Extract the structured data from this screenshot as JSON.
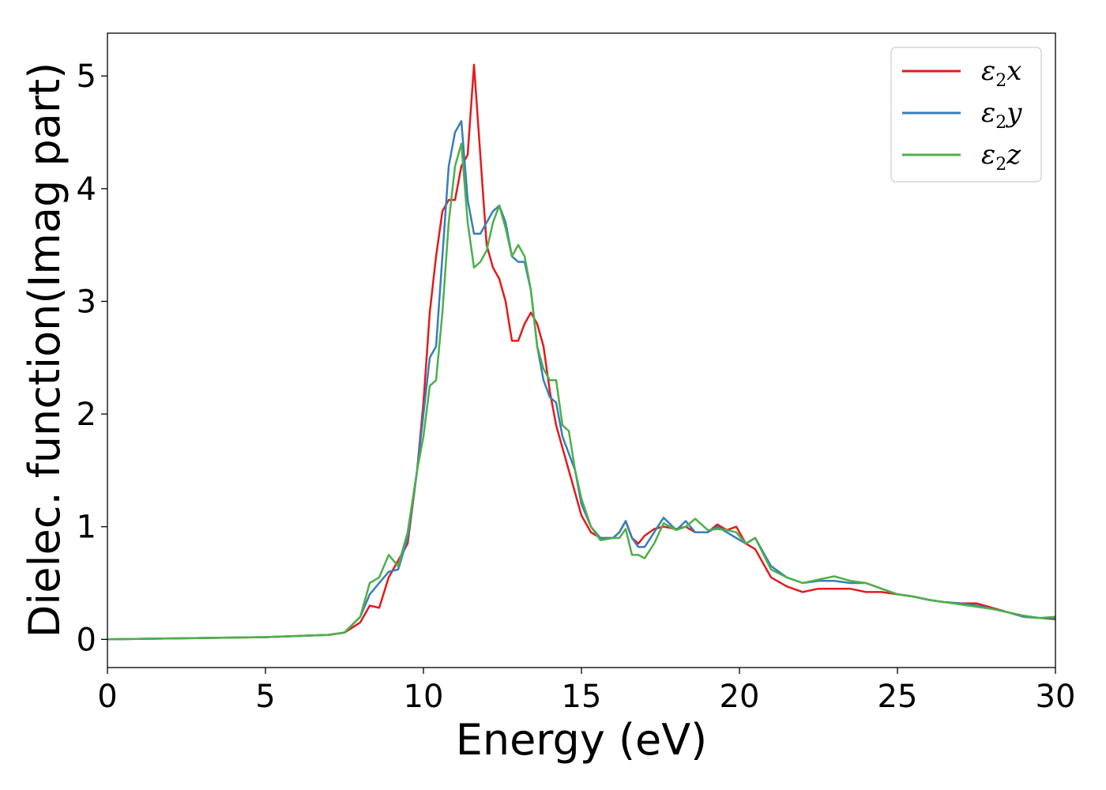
{
  "chart_data": {
    "type": "line",
    "title": "",
    "xlabel": "Energy (eV)",
    "ylabel": "Dielec. function(Imag part)",
    "xlim": [
      0,
      30
    ],
    "ylim": [
      -0.25,
      5.38
    ],
    "xticks": [
      0,
      5,
      10,
      15,
      20,
      25,
      30
    ],
    "yticks": [
      0,
      1,
      2,
      3,
      4,
      5
    ],
    "grid": false,
    "legend_position": "top-right",
    "series": [
      {
        "name": "ε₂x",
        "legend": {
          "base": "ε",
          "sub": "2",
          "suffix": "x"
        },
        "color": "#e41a1c",
        "x": [
          0,
          5,
          7,
          7.5,
          8,
          8.3,
          8.6,
          8.9,
          9.2,
          9.5,
          9.8,
          10.0,
          10.2,
          10.4,
          10.6,
          10.8,
          11.0,
          11.2,
          11.4,
          11.6,
          11.8,
          12.0,
          12.2,
          12.4,
          12.6,
          12.8,
          13.0,
          13.2,
          13.4,
          13.6,
          13.8,
          14.0,
          14.2,
          14.4,
          14.6,
          14.8,
          15.0,
          15.3,
          15.6,
          16.0,
          16.2,
          16.4,
          16.6,
          16.8,
          17.0,
          17.3,
          17.6,
          18.0,
          18.3,
          18.6,
          19.0,
          19.3,
          19.6,
          19.9,
          20.2,
          20.5,
          21.0,
          21.5,
          22.0,
          22.5,
          23.0,
          23.5,
          24.0,
          24.5,
          25.0,
          25.5,
          26.0,
          26.5,
          27.0,
          27.5,
          28.0,
          28.5,
          29.0,
          29.5,
          30.0
        ],
        "y": [
          0,
          0.02,
          0.04,
          0.06,
          0.15,
          0.3,
          0.28,
          0.55,
          0.7,
          0.85,
          1.5,
          2.1,
          2.9,
          3.4,
          3.8,
          3.9,
          3.9,
          4.2,
          4.3,
          5.1,
          4.3,
          3.5,
          3.3,
          3.2,
          3.0,
          2.65,
          2.65,
          2.8,
          2.9,
          2.8,
          2.6,
          2.2,
          1.9,
          1.7,
          1.5,
          1.3,
          1.1,
          0.95,
          0.9,
          0.9,
          0.95,
          1.05,
          0.9,
          0.85,
          0.92,
          0.98,
          1.0,
          0.98,
          1.0,
          0.95,
          0.95,
          1.02,
          0.97,
          1.0,
          0.85,
          0.8,
          0.55,
          0.47,
          0.42,
          0.45,
          0.45,
          0.45,
          0.42,
          0.42,
          0.4,
          0.38,
          0.35,
          0.33,
          0.32,
          0.32,
          0.28,
          0.24,
          0.2,
          0.19,
          0.18
        ]
      },
      {
        "name": "ε₂y",
        "legend": {
          "base": "ε",
          "sub": "2",
          "suffix": "y"
        },
        "color": "#377eb8",
        "x": [
          0,
          5,
          7,
          7.5,
          8,
          8.3,
          8.6,
          8.9,
          9.2,
          9.5,
          9.8,
          10.0,
          10.2,
          10.4,
          10.6,
          10.8,
          11.0,
          11.2,
          11.4,
          11.6,
          11.8,
          12.0,
          12.2,
          12.4,
          12.6,
          12.8,
          13.0,
          13.2,
          13.4,
          13.6,
          13.8,
          14.0,
          14.2,
          14.4,
          14.6,
          14.8,
          15.0,
          15.3,
          15.6,
          16.0,
          16.2,
          16.4,
          16.6,
          16.8,
          17.0,
          17.3,
          17.6,
          18.0,
          18.3,
          18.6,
          19.0,
          19.3,
          19.6,
          19.9,
          20.2,
          20.5,
          21.0,
          21.5,
          22.0,
          22.5,
          23.0,
          23.5,
          24.0,
          24.5,
          25.0,
          25.5,
          26.0,
          26.5,
          27.0,
          27.5,
          28.0,
          28.5,
          29.0,
          29.5,
          30.0
        ],
        "y": [
          0,
          0.02,
          0.04,
          0.06,
          0.2,
          0.4,
          0.5,
          0.6,
          0.62,
          0.9,
          1.5,
          2.0,
          2.5,
          2.6,
          3.4,
          4.2,
          4.5,
          4.6,
          3.9,
          3.6,
          3.6,
          3.7,
          3.8,
          3.85,
          3.7,
          3.4,
          3.35,
          3.35,
          3.1,
          2.6,
          2.3,
          2.15,
          2.1,
          1.8,
          1.65,
          1.5,
          1.2,
          1.0,
          0.9,
          0.9,
          0.95,
          1.05,
          0.9,
          0.82,
          0.82,
          0.95,
          1.08,
          0.97,
          1.05,
          0.95,
          0.95,
          1.0,
          0.95,
          0.9,
          0.85,
          0.9,
          0.65,
          0.55,
          0.5,
          0.52,
          0.52,
          0.5,
          0.5,
          0.45,
          0.4,
          0.38,
          0.35,
          0.33,
          0.32,
          0.3,
          0.27,
          0.24,
          0.2,
          0.19,
          0.19
        ]
      },
      {
        "name": "ε₂z",
        "legend": {
          "base": "ε",
          "sub": "2",
          "suffix": "z"
        },
        "color": "#4daf4a",
        "x": [
          0,
          5,
          7,
          7.5,
          8,
          8.3,
          8.6,
          8.9,
          9.2,
          9.5,
          9.8,
          10.0,
          10.2,
          10.4,
          10.6,
          10.8,
          11.0,
          11.2,
          11.4,
          11.6,
          11.8,
          12.0,
          12.2,
          12.4,
          12.6,
          12.8,
          13.0,
          13.2,
          13.4,
          13.6,
          13.8,
          14.0,
          14.2,
          14.4,
          14.6,
          14.8,
          15.0,
          15.3,
          15.6,
          16.0,
          16.2,
          16.4,
          16.6,
          16.8,
          17.0,
          17.3,
          17.6,
          18.0,
          18.3,
          18.6,
          19.0,
          19.3,
          19.6,
          19.9,
          20.2,
          20.5,
          21.0,
          21.5,
          22.0,
          22.5,
          23.0,
          23.5,
          24.0,
          24.5,
          25.0,
          25.5,
          26.0,
          26.5,
          27.0,
          27.5,
          28.0,
          28.5,
          29.0,
          29.5,
          30.0
        ],
        "y": [
          0,
          0.02,
          0.04,
          0.06,
          0.2,
          0.5,
          0.55,
          0.75,
          0.65,
          0.95,
          1.5,
          1.8,
          2.25,
          2.3,
          2.9,
          3.7,
          4.2,
          4.4,
          3.7,
          3.3,
          3.35,
          3.45,
          3.7,
          3.85,
          3.65,
          3.4,
          3.5,
          3.4,
          3.1,
          2.6,
          2.4,
          2.3,
          2.3,
          1.9,
          1.85,
          1.5,
          1.25,
          1.0,
          0.88,
          0.9,
          0.9,
          0.98,
          0.75,
          0.75,
          0.72,
          0.85,
          1.03,
          0.97,
          1.0,
          1.07,
          0.97,
          0.98,
          0.97,
          0.95,
          0.85,
          0.9,
          0.62,
          0.55,
          0.5,
          0.53,
          0.56,
          0.52,
          0.5,
          0.45,
          0.4,
          0.38,
          0.35,
          0.33,
          0.31,
          0.29,
          0.27,
          0.24,
          0.21,
          0.19,
          0.2
        ]
      }
    ]
  }
}
